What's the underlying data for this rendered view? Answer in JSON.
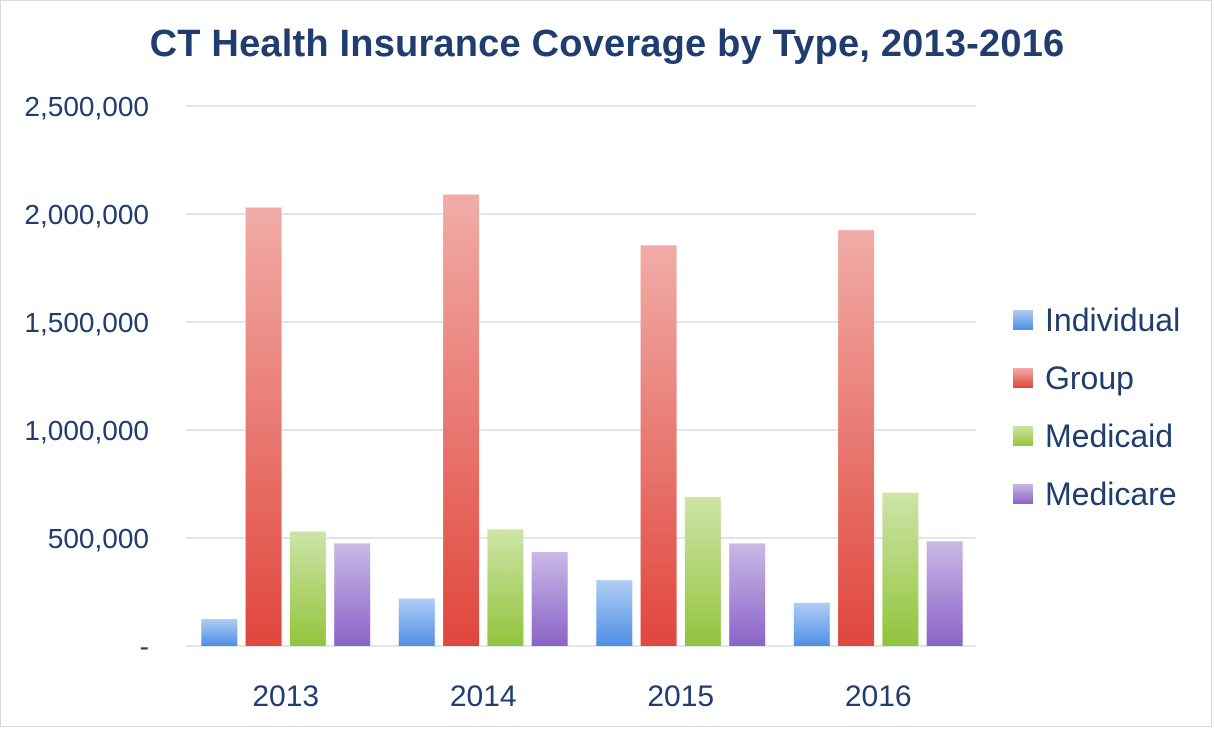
{
  "chart_data": {
    "type": "bar",
    "title": "CT Health Insurance Coverage by Type, 2013-2016",
    "xlabel": "",
    "ylabel": "",
    "categories": [
      "2013",
      "2014",
      "2015",
      "2016"
    ],
    "series": [
      {
        "name": "Individual",
        "color": "#4f8fe6",
        "values": [
          125000,
          220000,
          305000,
          200000
        ]
      },
      {
        "name": "Group",
        "color": "#e0463c",
        "values": [
          2030000,
          2090000,
          1855000,
          1925000
        ]
      },
      {
        "name": "Medicaid",
        "color": "#92c43c",
        "values": [
          530000,
          540000,
          690000,
          710000
        ]
      },
      {
        "name": "Medicare",
        "color": "#8a63c8",
        "values": [
          475000,
          435000,
          475000,
          485000
        ]
      }
    ],
    "ylim": [
      0,
      2500000
    ],
    "yticks": [
      0,
      500000,
      1000000,
      1500000,
      2000000,
      2500000
    ],
    "ytick_labels": [
      "-",
      "500,000",
      "1,000,000",
      "1,500,000",
      "2,000,000",
      "2,500,000"
    ],
    "grid": true,
    "legend_position": "right"
  }
}
